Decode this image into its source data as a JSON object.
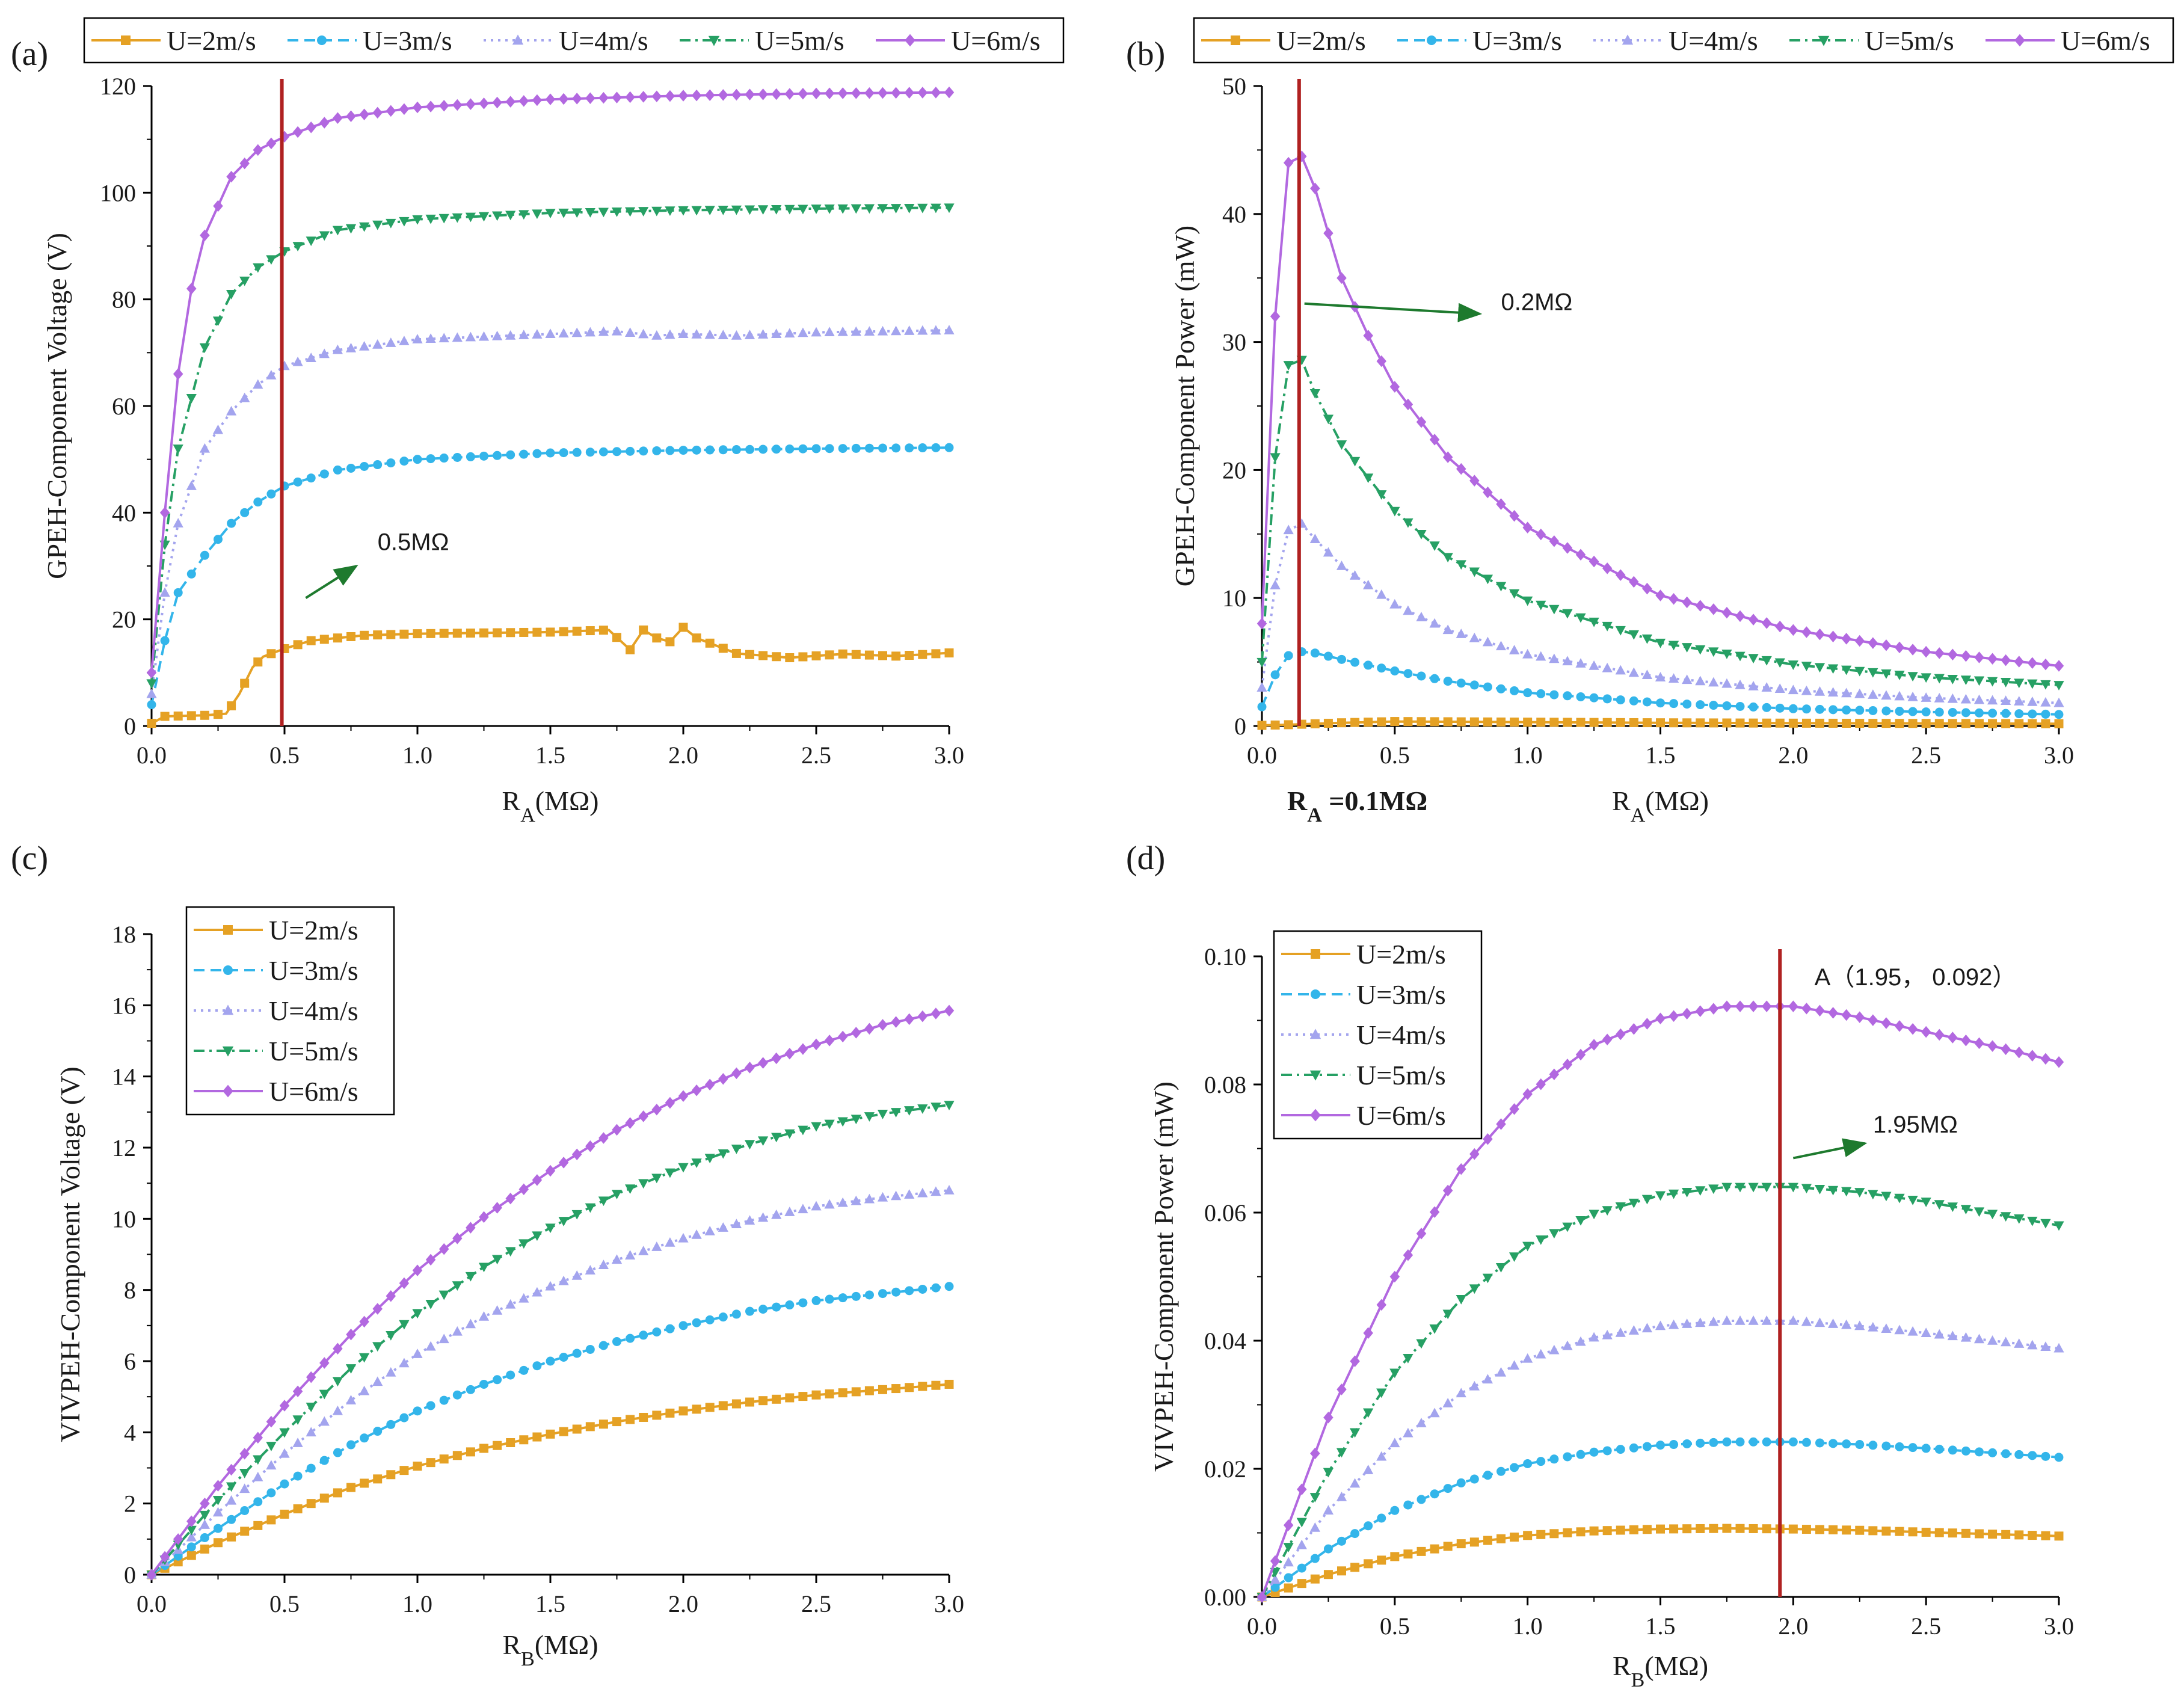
{
  "chart_data": [
    {
      "type": "line",
      "panel_label": "(a)",
      "xlabel": "R_A(MΩ)",
      "xlabel_main": "R",
      "xlabel_sub": "A",
      "xlabel_unit": "(MΩ)",
      "ylabel": "GPEH-Component Voltage (V)",
      "xlim": [
        0,
        3
      ],
      "ylim": [
        0,
        120
      ],
      "xticks": [
        "0.0",
        "0.5",
        "1.0",
        "1.5",
        "2.0",
        "2.5",
        "3.0"
      ],
      "yticks": [
        "0",
        "20",
        "40",
        "60",
        "80",
        "100",
        "120"
      ],
      "legend_position": "top-outside",
      "vline_x": 0.49,
      "annotations": [
        {
          "text": "0.5MΩ",
          "x": 0.85,
          "y": 33,
          "arrow_from": [
            0.58,
            24
          ],
          "arrow_to": [
            0.77,
            30
          ]
        }
      ],
      "series": [
        {
          "name": "U=2m/s",
          "x": [
            0.0,
            0.05,
            0.2,
            0.28,
            0.33,
            0.38,
            0.42,
            0.5,
            0.6,
            0.8,
            1.0,
            1.5,
            1.72,
            1.8,
            1.85,
            1.9,
            1.95,
            2.0,
            2.05,
            2.2,
            2.4,
            2.6,
            2.8,
            3.0
          ],
          "y": [
            0.5,
            1.8,
            2.0,
            2.3,
            6.0,
            11.0,
            13.0,
            14.5,
            16.0,
            17.0,
            17.3,
            17.6,
            18.0,
            14.3,
            18.0,
            16.5,
            15.8,
            18.5,
            16.5,
            13.6,
            12.8,
            13.5,
            13.1,
            13.7
          ]
        },
        {
          "name": "U=3m/s",
          "x": [
            0.0,
            0.05,
            0.1,
            0.2,
            0.3,
            0.4,
            0.5,
            0.7,
            1.0,
            1.5,
            2.0,
            2.5,
            3.0
          ],
          "y": [
            4,
            16,
            25,
            32,
            38,
            42,
            45,
            48,
            50,
            51.2,
            51.7,
            52.0,
            52.2
          ]
        },
        {
          "name": "U=4m/s",
          "x": [
            0.0,
            0.05,
            0.1,
            0.2,
            0.3,
            0.4,
            0.5,
            0.7,
            1.0,
            1.5,
            1.75,
            1.9,
            2.0,
            2.2,
            2.5,
            3.0
          ],
          "y": [
            6,
            25,
            38,
            52,
            59,
            64,
            67.5,
            70.5,
            72.5,
            73.5,
            74.0,
            73.2,
            73.5,
            73.2,
            73.8,
            74.2
          ]
        },
        {
          "name": "U=5m/s",
          "x": [
            0.0,
            0.05,
            0.1,
            0.2,
            0.3,
            0.4,
            0.5,
            0.7,
            1.0,
            1.5,
            2.0,
            2.5,
            3.0
          ],
          "y": [
            8,
            34,
            52,
            71,
            81,
            86,
            89,
            93,
            95,
            96.2,
            96.7,
            97.0,
            97.2
          ]
        },
        {
          "name": "U=6m/s",
          "x": [
            0.0,
            0.05,
            0.1,
            0.15,
            0.2,
            0.3,
            0.4,
            0.5,
            0.7,
            1.0,
            1.5,
            2.0,
            2.5,
            3.0
          ],
          "y": [
            10,
            40,
            66,
            82,
            92,
            103,
            108,
            110.5,
            114,
            116,
            117.5,
            118.2,
            118.6,
            118.8
          ]
        }
      ]
    },
    {
      "type": "line",
      "panel_label": "(b)",
      "xlabel": "R_A(MΩ)",
      "xlabel_main": "R",
      "xlabel_sub": "A",
      "xlabel_unit": "(MΩ)",
      "ylabel": "GPEH-Component Power (mW)",
      "xlim": [
        0,
        3
      ],
      "ylim": [
        0,
        50
      ],
      "xticks": [
        "0.0",
        "0.5",
        "1.0",
        "1.5",
        "2.0",
        "2.5",
        "3.0"
      ],
      "yticks": [
        "0",
        "10",
        "20",
        "30",
        "40",
        "50"
      ],
      "legend_position": "top-outside",
      "vline_x": 0.14,
      "annotations": [
        {
          "text": "0.2MΩ",
          "x": 0.9,
          "y": 32.5,
          "arrow_from": [
            0.16,
            33
          ],
          "arrow_to": [
            0.82,
            32.2
          ]
        }
      ],
      "extra_label_main": "R",
      "extra_label_sub": "A",
      "extra_label_rest": " =0.1MΩ",
      "series": [
        {
          "name": "U=2m/s",
          "x": [
            0.0,
            0.1,
            0.3,
            0.5,
            0.7,
            1.0,
            1.5,
            2.0,
            2.5,
            3.0
          ],
          "y": [
            0.05,
            0.1,
            0.25,
            0.35,
            0.33,
            0.3,
            0.25,
            0.22,
            0.2,
            0.18
          ]
        },
        {
          "name": "U=3m/s",
          "x": [
            0.0,
            0.05,
            0.1,
            0.15,
            0.2,
            0.3,
            0.5,
            0.7,
            1.0,
            1.5,
            2.0,
            2.5,
            3.0
          ],
          "y": [
            1.5,
            4.0,
            5.5,
            5.8,
            5.7,
            5.2,
            4.3,
            3.5,
            2.6,
            1.8,
            1.35,
            1.1,
            0.9
          ]
        },
        {
          "name": "U=4m/s",
          "x": [
            0.0,
            0.05,
            0.1,
            0.15,
            0.2,
            0.3,
            0.5,
            0.7,
            1.0,
            1.5,
            2.0,
            2.5,
            3.0
          ],
          "y": [
            3,
            11,
            15.3,
            15.8,
            14.6,
            12.5,
            9.5,
            7.5,
            5.6,
            3.8,
            2.8,
            2.2,
            1.8
          ]
        },
        {
          "name": "U=5m/s",
          "x": [
            0.0,
            0.05,
            0.1,
            0.15,
            0.2,
            0.3,
            0.5,
            0.7,
            1.0,
            1.5,
            2.0,
            2.5,
            3.0
          ],
          "y": [
            5,
            21,
            28.2,
            28.6,
            26,
            22,
            16.8,
            13.2,
            9.8,
            6.5,
            4.8,
            3.8,
            3.2
          ]
        },
        {
          "name": "U=6m/s",
          "x": [
            0.0,
            0.05,
            0.1,
            0.15,
            0.2,
            0.3,
            0.4,
            0.5,
            0.7,
            1.0,
            1.5,
            2.0,
            2.5,
            3.0
          ],
          "y": [
            8,
            32,
            44,
            44.5,
            42,
            35,
            30.5,
            26.5,
            21,
            15.5,
            10.2,
            7.5,
            5.8,
            4.7
          ]
        }
      ]
    },
    {
      "type": "line",
      "panel_label": "(c)",
      "xlabel": "R_B(MΩ)",
      "xlabel_main": "R",
      "xlabel_sub": "B",
      "xlabel_unit": "(MΩ)",
      "ylabel": "VIVPEH-Component Voltage (V)",
      "xlim": [
        0,
        3
      ],
      "ylim": [
        0,
        18
      ],
      "xticks": [
        "0.0",
        "0.5",
        "1.0",
        "1.5",
        "2.0",
        "2.5",
        "3.0"
      ],
      "yticks": [
        "0",
        "2",
        "4",
        "6",
        "8",
        "10",
        "12",
        "14",
        "16",
        "18"
      ],
      "legend_position": "top-left-inside",
      "series": [
        {
          "name": "U=2m/s",
          "x": [
            0.0,
            0.25,
            0.5,
            0.75,
            1.0,
            1.25,
            1.5,
            1.75,
            2.0,
            2.25,
            2.5,
            2.75,
            3.0
          ],
          "y": [
            0.0,
            0.9,
            1.7,
            2.45,
            3.05,
            3.55,
            3.95,
            4.3,
            4.6,
            4.85,
            5.05,
            5.2,
            5.35
          ]
        },
        {
          "name": "U=3m/s",
          "x": [
            0.0,
            0.25,
            0.5,
            0.75,
            1.0,
            1.25,
            1.5,
            1.75,
            2.0,
            2.25,
            2.5,
            2.75,
            3.0
          ],
          "y": [
            0.0,
            1.3,
            2.55,
            3.65,
            4.6,
            5.35,
            6.0,
            6.55,
            7.0,
            7.4,
            7.7,
            7.9,
            8.1
          ]
        },
        {
          "name": "U=4m/s",
          "x": [
            0.0,
            0.25,
            0.5,
            0.75,
            1.0,
            1.25,
            1.5,
            1.75,
            2.0,
            2.25,
            2.5,
            2.75,
            3.0
          ],
          "y": [
            0.0,
            1.75,
            3.4,
            4.9,
            6.2,
            7.25,
            8.1,
            8.85,
            9.45,
            9.95,
            10.35,
            10.6,
            10.8
          ]
        },
        {
          "name": "U=5m/s",
          "x": [
            0.0,
            0.25,
            0.5,
            0.75,
            1.0,
            1.25,
            1.5,
            1.75,
            2.0,
            2.25,
            2.5,
            2.75,
            3.0
          ],
          "y": [
            0.0,
            2.1,
            4.0,
            5.8,
            7.35,
            8.65,
            9.75,
            10.7,
            11.45,
            12.1,
            12.6,
            12.95,
            13.2
          ]
        },
        {
          "name": "U=6m/s",
          "x": [
            0.0,
            0.25,
            0.5,
            0.75,
            1.0,
            1.25,
            1.5,
            1.75,
            2.0,
            2.25,
            2.5,
            2.75,
            3.0
          ],
          "y": [
            0.0,
            2.5,
            4.75,
            6.75,
            8.55,
            10.05,
            11.35,
            12.5,
            13.45,
            14.25,
            14.9,
            15.45,
            15.85
          ]
        }
      ]
    },
    {
      "type": "line",
      "panel_label": "(d)",
      "xlabel": "R_B(MΩ)",
      "xlabel_main": "R",
      "xlabel_sub": "B",
      "xlabel_unit": "(MΩ)",
      "ylabel": "VIVPEH-Component Power (mW)",
      "xlim": [
        0,
        3
      ],
      "ylim": [
        0,
        0.1
      ],
      "xticks": [
        "0.0",
        "0.5",
        "1.0",
        "1.5",
        "2.0",
        "2.5",
        "3.0"
      ],
      "yticks": [
        "0.00",
        "0.02",
        "0.04",
        "0.06",
        "0.08",
        "0.10"
      ],
      "legend_position": "top-left-inside",
      "vline_x": 1.95,
      "annotations": [
        {
          "text": "A（1.95， 0.092）",
          "x": 2.08,
          "y": 0.0955
        },
        {
          "text": "1.95MΩ",
          "x": 2.3,
          "y": 0.0725,
          "arrow_from": [
            2.0,
            0.0685
          ],
          "arrow_to": [
            2.27,
            0.0708
          ]
        }
      ],
      "series": [
        {
          "name": "U=2m/s",
          "x": [
            0.0,
            0.25,
            0.5,
            0.75,
            1.0,
            1.25,
            1.5,
            1.75,
            2.0,
            2.25,
            2.5,
            2.75,
            3.0
          ],
          "y": [
            0.0,
            0.0035,
            0.0063,
            0.0083,
            0.0096,
            0.0103,
            0.0106,
            0.0107,
            0.0106,
            0.0104,
            0.0101,
            0.0098,
            0.0095
          ]
        },
        {
          "name": "U=3m/s",
          "x": [
            0.0,
            0.25,
            0.5,
            0.75,
            1.0,
            1.25,
            1.5,
            1.75,
            2.0,
            2.25,
            2.5,
            2.75,
            3.0
          ],
          "y": [
            0.0,
            0.0075,
            0.0135,
            0.0178,
            0.0208,
            0.0226,
            0.0237,
            0.0242,
            0.0242,
            0.0238,
            0.0232,
            0.0225,
            0.0218
          ]
        },
        {
          "name": "U=4m/s",
          "x": [
            0.0,
            0.25,
            0.5,
            0.75,
            1.0,
            1.25,
            1.5,
            1.75,
            2.0,
            2.25,
            2.5,
            2.75,
            3.0
          ],
          "y": [
            0.0,
            0.0135,
            0.024,
            0.0318,
            0.0372,
            0.0405,
            0.0423,
            0.0431,
            0.0431,
            0.0423,
            0.0412,
            0.04,
            0.0388
          ]
        },
        {
          "name": "U=5m/s",
          "x": [
            0.0,
            0.25,
            0.5,
            0.75,
            1.0,
            1.25,
            1.5,
            1.75,
            2.0,
            2.25,
            2.5,
            2.75,
            3.0
          ],
          "y": [
            0.0,
            0.0195,
            0.035,
            0.0465,
            0.0548,
            0.0598,
            0.0627,
            0.064,
            0.064,
            0.0632,
            0.0617,
            0.0598,
            0.058
          ]
        },
        {
          "name": "U=6m/s",
          "x": [
            0.0,
            0.25,
            0.5,
            0.75,
            1.0,
            1.25,
            1.5,
            1.75,
            2.0,
            2.25,
            2.5,
            2.75,
            3.0
          ],
          "y": [
            0.0,
            0.028,
            0.05,
            0.0668,
            0.0785,
            0.0862,
            0.0903,
            0.0922,
            0.0922,
            0.0905,
            0.0882,
            0.086,
            0.0835
          ]
        }
      ]
    }
  ],
  "style": {
    "series_colors": [
      "#e5a124",
      "#33b5ea",
      "#a3a4ee",
      "#26a064",
      "#b268e0"
    ],
    "series_markers": [
      "square",
      "circle",
      "triangle-up",
      "triangle-down",
      "diamond"
    ],
    "series_dashes": [
      "",
      "18,10",
      "4,8",
      "18,8,4,8",
      ""
    ],
    "vline_color": "#b02121",
    "arrow_color": "#1e7a2e"
  }
}
